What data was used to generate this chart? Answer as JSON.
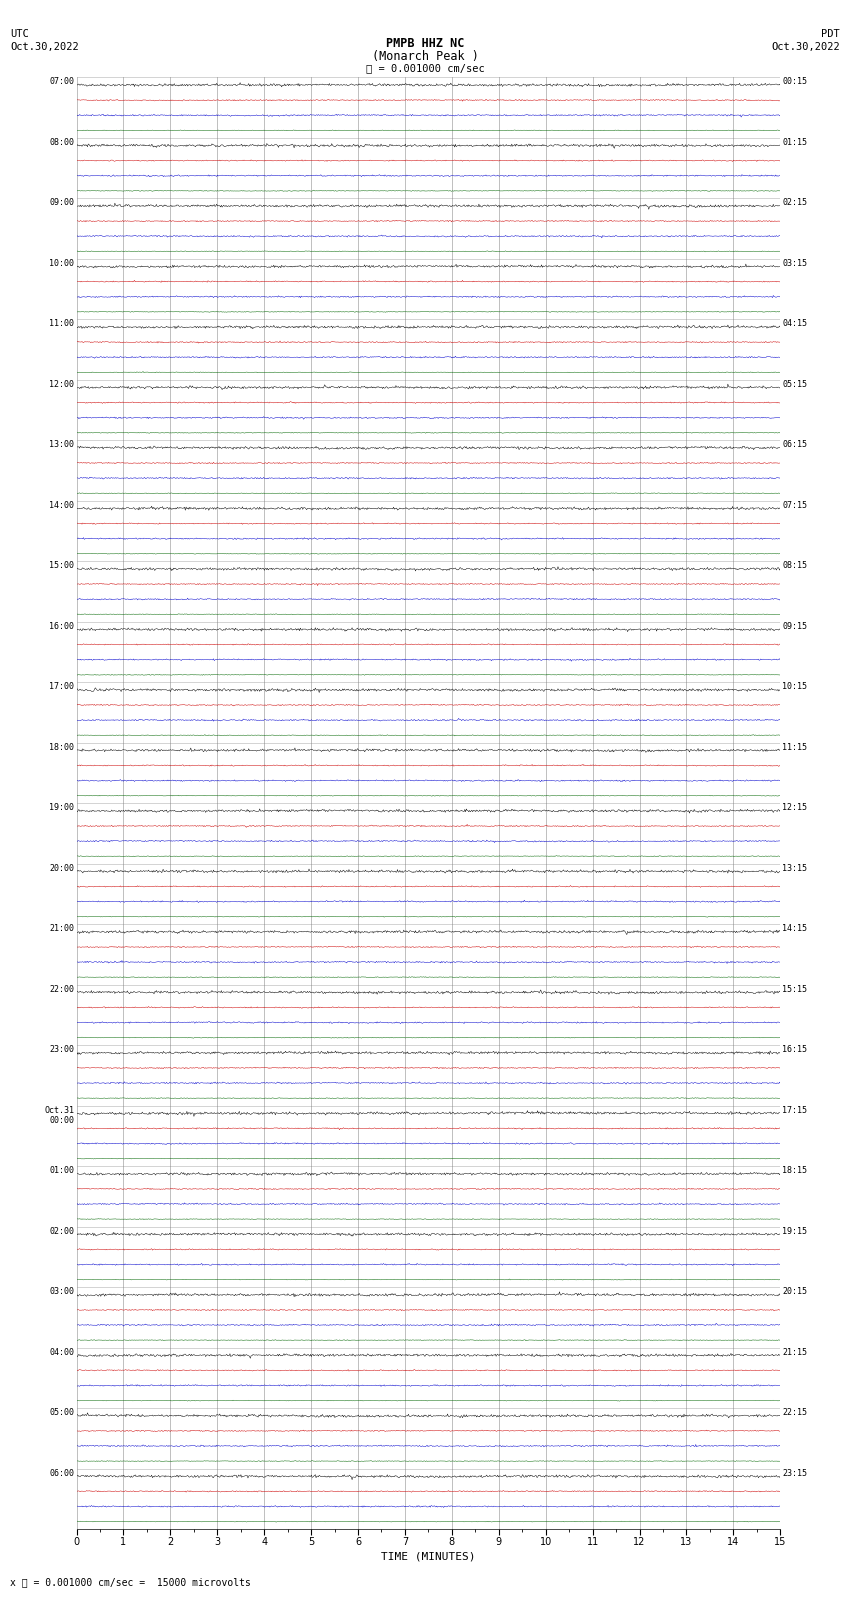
{
  "title_line1": "PMPB HHZ NC",
  "title_line2": "(Monarch Peak )",
  "scale_text": "= 0.001000 cm/sec",
  "bottom_scale_text": "= 0.001000 cm/sec =  15000 microvolts",
  "utc_label": "UTC",
  "utc_date": "Oct.30,2022",
  "pdt_label": "PDT",
  "pdt_date": "Oct.30,2022",
  "xlabel": "TIME (MINUTES)",
  "background_color": "#ffffff",
  "trace_colors": [
    "#000000",
    "#cc0000",
    "#0000cc",
    "#006600"
  ],
  "grid_color": "#808080",
  "text_color": "#000000",
  "num_hour_rows": 24,
  "traces_per_row": 4,
  "minutes_per_row": 15,
  "fig_width": 8.5,
  "fig_height": 16.13,
  "dpi": 100,
  "left_labels_utc": [
    "07:00",
    "08:00",
    "09:00",
    "10:00",
    "11:00",
    "12:00",
    "13:00",
    "14:00",
    "15:00",
    "16:00",
    "17:00",
    "18:00",
    "19:00",
    "20:00",
    "21:00",
    "22:00",
    "23:00",
    "Oct.31\n00:00",
    "01:00",
    "02:00",
    "03:00",
    "04:00",
    "05:00",
    "06:00"
  ],
  "right_labels_pdt": [
    "00:15",
    "01:15",
    "02:15",
    "03:15",
    "04:15",
    "05:15",
    "06:15",
    "07:15",
    "08:15",
    "09:15",
    "10:15",
    "11:15",
    "12:15",
    "13:15",
    "14:15",
    "15:15",
    "16:15",
    "17:15",
    "18:15",
    "19:15",
    "20:15",
    "21:15",
    "22:15",
    "23:15"
  ],
  "noise_amplitude_black": 0.04,
  "noise_amplitude_red": 0.018,
  "noise_amplitude_blue": 0.022,
  "noise_amplitude_green": 0.01,
  "spike_probability": 0.0008,
  "spike_amplitude_scale": 4.0,
  "seed": 42
}
